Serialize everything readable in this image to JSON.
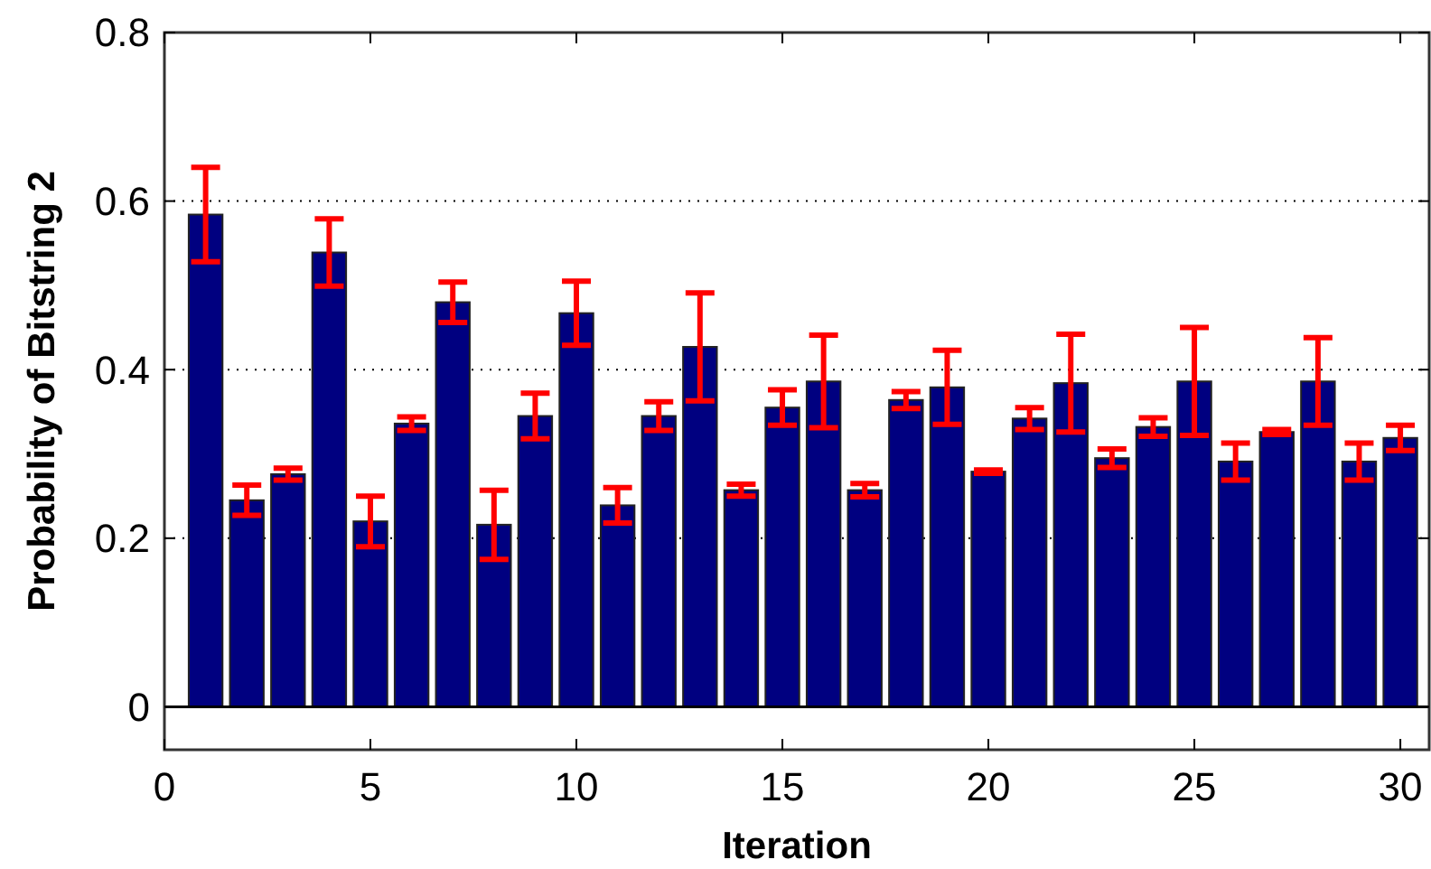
{
  "chart_data": {
    "type": "bar",
    "xlabel": "Iteration",
    "ylabel": "Probability of Bitstring 2",
    "x": [
      1,
      2,
      3,
      4,
      5,
      6,
      7,
      8,
      9,
      10,
      11,
      12,
      13,
      14,
      15,
      16,
      17,
      18,
      19,
      20,
      21,
      22,
      23,
      24,
      25,
      26,
      27,
      28,
      29,
      30
    ],
    "series": [
      {
        "color": "#000080",
        "values": [
          0.584,
          0.245,
          0.276,
          0.539,
          0.22,
          0.336,
          0.48,
          0.216,
          0.345,
          0.467,
          0.239,
          0.345,
          0.427,
          0.257,
          0.355,
          0.386,
          0.257,
          0.364,
          0.379,
          0.279,
          0.342,
          0.384,
          0.295,
          0.332,
          0.386,
          0.291,
          0.326,
          0.386,
          0.291,
          0.319
        ],
        "errors": [
          0.056,
          0.018,
          0.007,
          0.04,
          0.03,
          0.008,
          0.024,
          0.041,
          0.027,
          0.038,
          0.021,
          0.017,
          0.064,
          0.007,
          0.021,
          0.055,
          0.008,
          0.01,
          0.044,
          0.002,
          0.013,
          0.058,
          0.011,
          0.011,
          0.064,
          0.022,
          0.003,
          0.052,
          0.022,
          0.015
        ]
      }
    ],
    "xlim": [
      0,
      30.7
    ],
    "ylim": [
      -0.051,
      0.8
    ],
    "xticks": [
      0,
      5,
      10,
      15,
      20,
      25,
      30
    ],
    "yticks": [
      0,
      0.2,
      0.4,
      0.6,
      0.8
    ],
    "grid": "y",
    "ref_lines": [
      {
        "axis": "y",
        "value": 0,
        "line_style": "solid",
        "color": "#000000"
      }
    ]
  }
}
